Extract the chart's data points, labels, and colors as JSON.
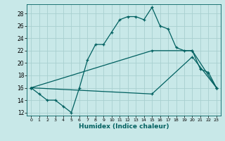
{
  "xlabel": "Humidex (Indice chaleur)",
  "bg_color": "#c8e8e8",
  "grid_color": "#a8d0d0",
  "line_color": "#006060",
  "xlim": [
    -0.5,
    23.5
  ],
  "ylim": [
    11.5,
    29.5
  ],
  "xticks": [
    0,
    1,
    2,
    3,
    4,
    5,
    6,
    7,
    8,
    9,
    10,
    11,
    12,
    13,
    14,
    15,
    16,
    17,
    18,
    19,
    20,
    21,
    22,
    23
  ],
  "yticks": [
    12,
    14,
    16,
    18,
    20,
    22,
    24,
    26,
    28
  ],
  "line1_x": [
    0,
    1,
    2,
    3,
    4,
    5,
    6,
    7,
    8,
    9,
    10,
    11,
    12,
    13,
    14,
    15,
    16,
    17,
    18,
    19,
    20,
    21,
    22,
    23
  ],
  "line1_y": [
    16,
    15,
    14,
    14,
    13,
    12,
    16,
    20.5,
    23,
    23,
    25,
    27,
    27.5,
    27.5,
    27,
    29,
    26,
    25.5,
    22.5,
    22,
    22,
    19,
    18.5,
    16
  ],
  "line2_x": [
    0,
    15,
    20,
    23
  ],
  "line2_y": [
    16,
    22,
    22,
    16
  ],
  "line3_x": [
    0,
    15,
    20,
    23
  ],
  "line3_y": [
    16,
    15,
    21,
    16
  ]
}
